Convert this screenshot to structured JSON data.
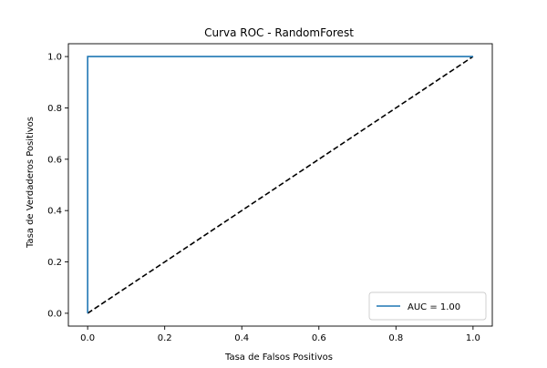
{
  "chart_data": {
    "type": "line",
    "title": "Curva ROC - RandomForest",
    "xlabel": "Tasa de Falsos Positivos",
    "ylabel": "Tasa de Verdaderos Positivos",
    "xlim": [
      -0.05,
      1.05
    ],
    "ylim": [
      -0.05,
      1.05
    ],
    "xticks": [
      0.0,
      0.2,
      0.4,
      0.6,
      0.8,
      1.0
    ],
    "yticks": [
      0.0,
      0.2,
      0.4,
      0.6,
      0.8,
      1.0
    ],
    "xtick_labels": [
      "0.0",
      "0.2",
      "0.4",
      "0.6",
      "0.8",
      "1.0"
    ],
    "ytick_labels": [
      "0.0",
      "0.2",
      "0.4",
      "0.6",
      "0.8",
      "1.0"
    ],
    "grid": false,
    "legend_position": "lower-right",
    "series": [
      {
        "name": "AUC = 1.00",
        "color": "#1f77b4",
        "style": "solid",
        "x": [
          0.0,
          0.0,
          1.0
        ],
        "y": [
          0.0,
          1.0,
          1.0
        ]
      },
      {
        "color": "#000000",
        "style": "dashed",
        "x": [
          0.0,
          1.0
        ],
        "y": [
          0.0,
          1.0
        ]
      }
    ]
  }
}
